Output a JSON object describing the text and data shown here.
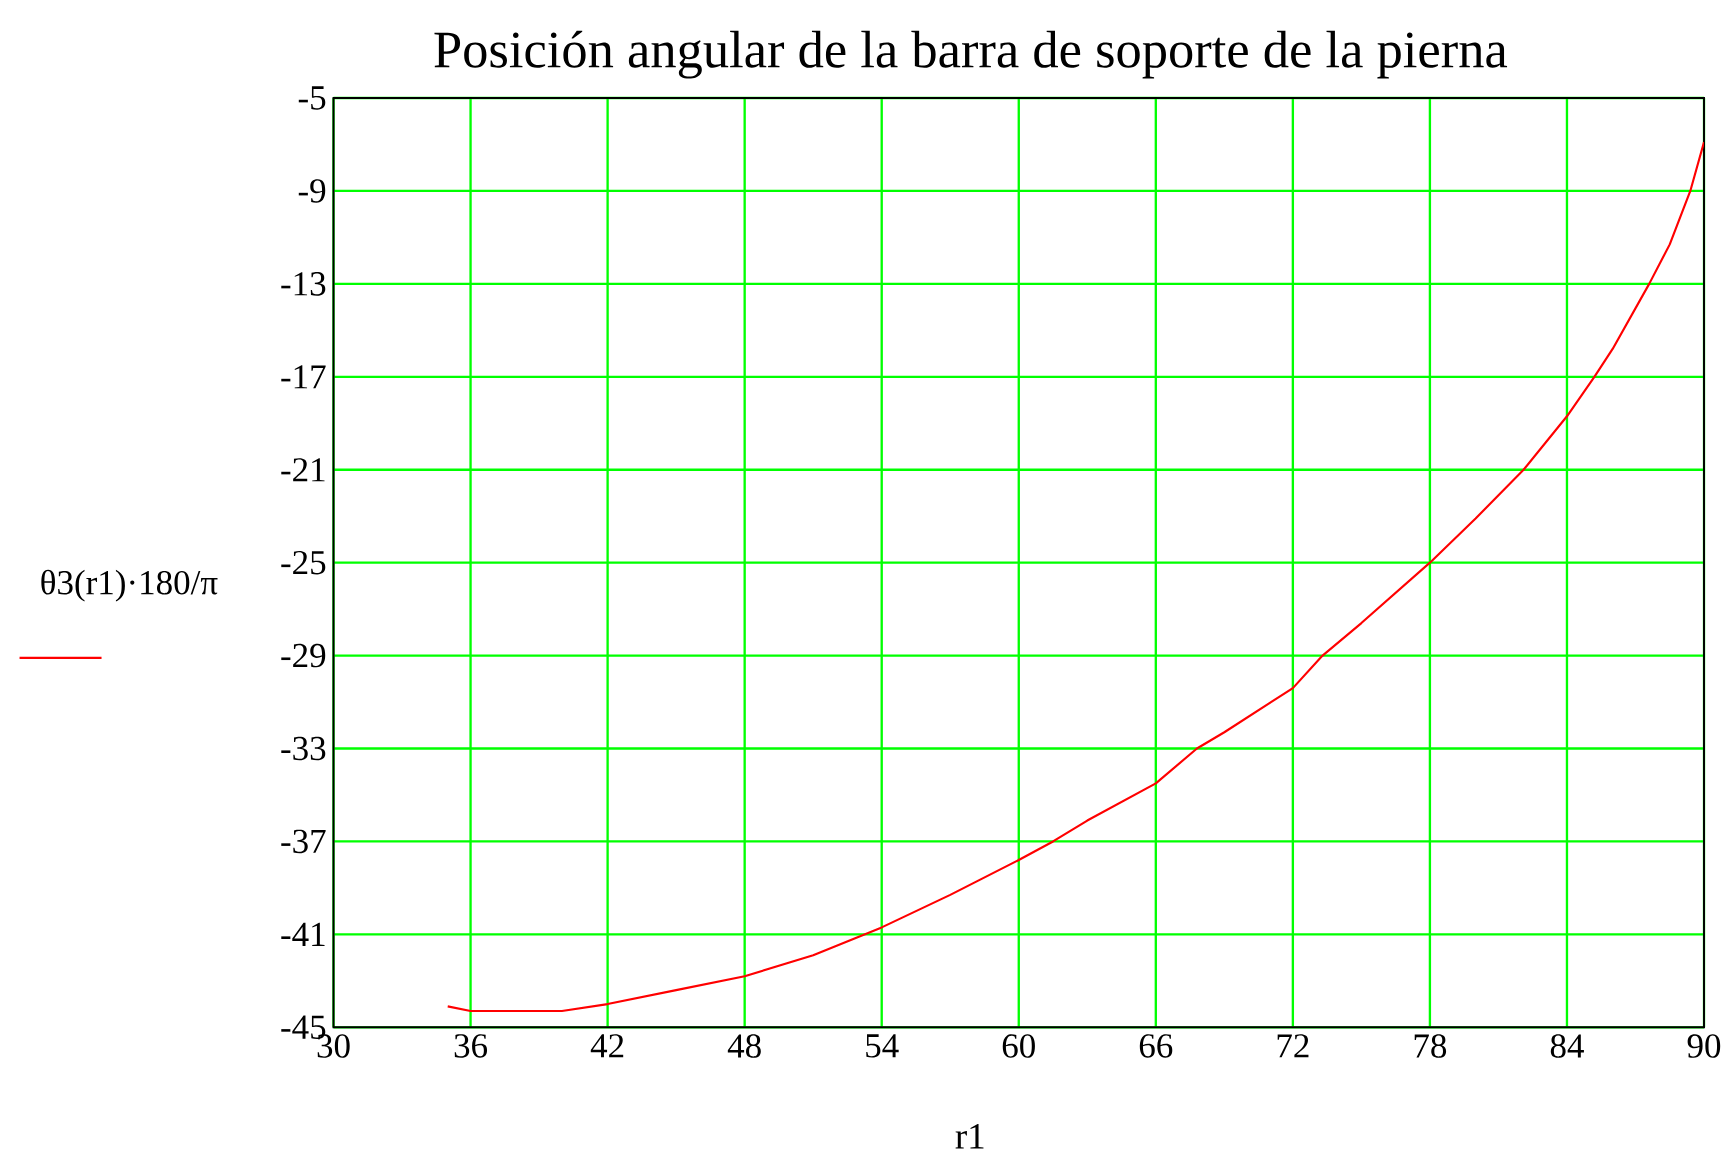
{
  "chart_data": {
    "type": "line",
    "title": "Posición angular de la barra de soporte de la pierna",
    "xlabel": "r1",
    "ylabel": "θ3(r1)·180/π",
    "xlim": [
      30,
      90
    ],
    "xticks": [
      30,
      36,
      42,
      48,
      54,
      60,
      66,
      72,
      78,
      84,
      90
    ],
    "ylim": [
      -45,
      -5
    ],
    "yticks": [
      -45,
      -41,
      -37,
      -33,
      -29,
      -25,
      -21,
      -17,
      -13,
      -9,
      -5
    ],
    "grid": true,
    "marker": "none",
    "line_style": "solid",
    "x": [
      35,
      36,
      38,
      40,
      42,
      45,
      48,
      51,
      54,
      57,
      60,
      61.5,
      63,
      66,
      67.8,
      69,
      72,
      73.3,
      75,
      78,
      80,
      82.1,
      84,
      85.2,
      86,
      87.6,
      88.5,
      89.4,
      90
    ],
    "series": [
      {
        "color": "#ff0000",
        "values": [
          -44.1,
          -44.3,
          -44.3,
          -44.3,
          -44.0,
          -43.4,
          -42.8,
          -41.9,
          -40.7,
          -39.3,
          -37.8,
          -37.0,
          -36.1,
          -34.5,
          -33.0,
          -32.3,
          -30.4,
          -29.0,
          -27.6,
          -25.0,
          -23.1,
          -21.0,
          -18.7,
          -17.0,
          -15.8,
          -13.0,
          -11.3,
          -9.0,
          -6.9
        ]
      }
    ]
  }
}
